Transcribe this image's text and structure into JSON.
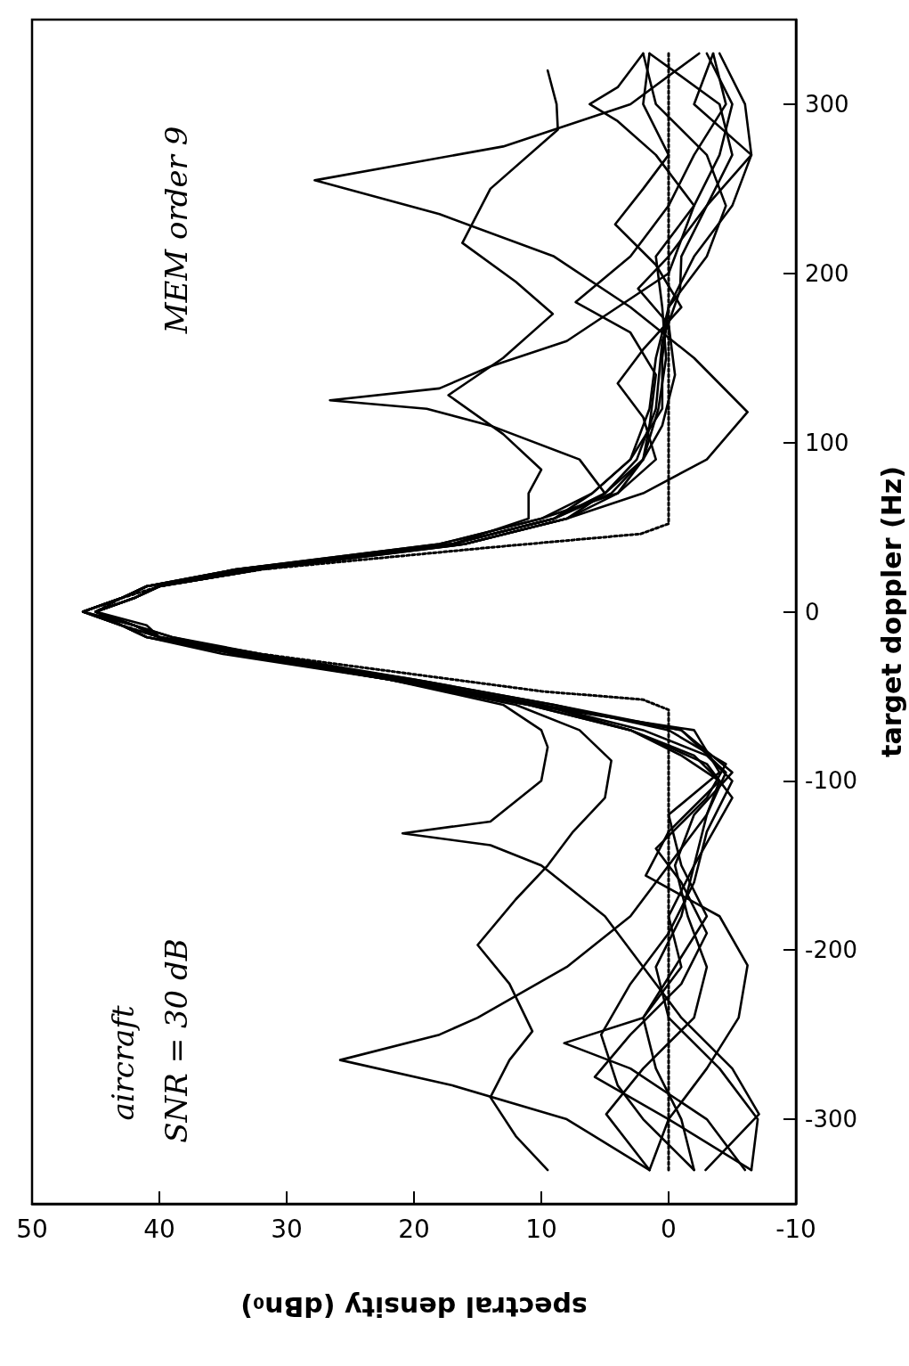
{
  "chart_data": {
    "type": "line",
    "xlabel": "spectral density (dBn₀)",
    "ylabel": "target doppler (Hz)",
    "xlim": [
      50,
      -10
    ],
    "ylim": [
      -350,
      350
    ],
    "xticks": [
      50,
      40,
      30,
      20,
      10,
      0,
      -10
    ],
    "yticks": [
      -300,
      -200,
      -100,
      0,
      100,
      200,
      300
    ],
    "grid": false,
    "marker": "none",
    "line_style": "solid",
    "annotations": [
      "aircraft",
      "SNR = 30 dB",
      "MEM order 9"
    ],
    "series": [
      {
        "color": "#000000",
        "values": [
          -330,
          -310,
          -287,
          -265,
          -248,
          -220,
          -197,
          -170,
          -150,
          -130,
          -110,
          -88,
          -70,
          -55,
          -40,
          -25,
          -15,
          -8,
          0,
          8,
          15,
          25,
          40,
          55,
          70,
          84,
          105,
          128,
          150,
          176,
          195,
          218,
          250,
          285,
          300,
          320
        ],
        "x": [
          9.5,
          12,
          14,
          12.5,
          10.7,
          12.5,
          15,
          12,
          9.5,
          7.5,
          5,
          4.5,
          7,
          12,
          22,
          34,
          40,
          42,
          46,
          43,
          41,
          33,
          17,
          11,
          11,
          10,
          13,
          17.3,
          13,
          9.1,
          12,
          16.2,
          14,
          8.7,
          8.8,
          9.5
        ]
      },
      {
        "color": "#000000",
        "values": [
          -330,
          -300,
          -280,
          -265,
          -250,
          -240,
          -210,
          -180,
          -150,
          -120,
          -100,
          -85,
          -70,
          -55,
          -40,
          -25,
          -15,
          -8,
          0,
          8,
          15,
          25,
          40,
          55,
          70,
          90,
          118,
          150,
          180,
          210,
          235,
          255,
          275,
          300,
          330
        ],
        "x": [
          1.5,
          8,
          17,
          25.8,
          18,
          15,
          8,
          3,
          0,
          -3,
          -4,
          -1,
          3,
          11,
          21,
          33,
          40,
          41,
          45,
          42,
          40,
          32,
          16,
          8,
          2,
          -3,
          -6.2,
          -2,
          3,
          9,
          18,
          27.8,
          13,
          3,
          -2.4
        ]
      },
      {
        "color": "#000000",
        "values": [
          -330,
          -297,
          -270,
          -240,
          -210,
          -180,
          -150,
          -138,
          -131,
          -124,
          -100,
          -80,
          -70,
          -55,
          -40,
          -25,
          -15,
          -8,
          0,
          8,
          15,
          25,
          40,
          55,
          70,
          90,
          110,
          120,
          125,
          132,
          145,
          160,
          200,
          240,
          270,
          290,
          300,
          310,
          330
        ],
        "x": [
          -2.9,
          -7.1,
          -5,
          -1,
          2,
          5,
          10,
          14,
          20.9,
          14,
          10,
          9.5,
          10,
          13,
          22,
          34,
          41,
          43,
          46,
          43,
          41,
          34,
          17,
          9,
          5,
          7,
          14,
          19,
          26.6,
          18,
          14,
          8,
          0,
          -2,
          1,
          4,
          6.2,
          4,
          2
        ]
      },
      {
        "color": "#000000",
        "values": [
          -330,
          -300,
          -270,
          -240,
          -209,
          -180,
          -156,
          -130,
          -100,
          -85,
          -70,
          -55,
          -40,
          -25,
          -15,
          -8,
          0,
          8,
          15,
          25,
          40,
          55,
          70,
          90,
          110,
          140,
          165,
          183,
          210,
          240,
          270,
          300,
          330
        ],
        "x": [
          1.5,
          0,
          -3,
          -5.5,
          -6.2,
          -4,
          1.8,
          0,
          -4,
          -2,
          3,
          10,
          21,
          33,
          39,
          42,
          45,
          42,
          40,
          33,
          16,
          8,
          4,
          2,
          1.5,
          1,
          3,
          7.3,
          3,
          0,
          -2,
          -4.5,
          -3.5
        ]
      },
      {
        "color": "#000000",
        "values": [
          -330,
          -300,
          -270,
          -255,
          -240,
          -210,
          -180,
          -150,
          -110,
          -90,
          -70,
          -55,
          -40,
          -25,
          -15,
          -8,
          0,
          8,
          15,
          25,
          40,
          55,
          70,
          90,
          115,
          135,
          155,
          180,
          205,
          229,
          250,
          270,
          300,
          330
        ],
        "x": [
          -6,
          -3,
          3,
          8.2,
          2,
          -1,
          0,
          -2,
          -5,
          -3,
          3,
          11,
          22,
          35,
          41,
          43,
          46,
          43,
          41,
          34,
          18,
          10,
          4,
          1,
          2,
          4,
          2,
          -1,
          1,
          4.2,
          2,
          0,
          2,
          1.5
        ]
      },
      {
        "color": "#000000",
        "values": [
          -330,
          -300,
          -280,
          -250,
          -220,
          -190,
          -160,
          -130,
          -100,
          -85,
          -70,
          -55,
          -40,
          -25,
          -15,
          -8,
          0,
          8,
          15,
          25,
          40,
          55,
          70,
          90,
          110,
          140,
          170,
          191,
          210,
          240,
          270,
          300,
          330
        ],
        "x": [
          -2,
          2,
          4,
          5.3,
          3,
          0,
          -2,
          -3,
          -5,
          -3,
          2,
          10,
          21,
          33,
          40,
          42,
          45,
          42,
          40,
          33,
          17,
          9,
          5,
          2,
          0.5,
          -0.5,
          0,
          2.4,
          0,
          -3,
          -6.5,
          -6,
          -4
        ]
      },
      {
        "color": "#000000",
        "values": [
          -330,
          -300,
          -275,
          -250,
          -220,
          -190,
          -160,
          -140,
          -110,
          -90,
          -70,
          -55,
          -40,
          -25,
          -15,
          -8,
          0,
          8,
          15,
          25,
          40,
          55,
          70,
          90,
          120,
          160,
          190,
          210,
          240,
          270,
          300,
          330
        ],
        "x": [
          -6.5,
          0,
          5.8,
          3,
          -1,
          -3,
          -1,
          1,
          -3,
          -4.5,
          0,
          9,
          20,
          32,
          39,
          42,
          45,
          42,
          40,
          32,
          16,
          8,
          5,
          2.5,
          1,
          0.5,
          -0.9,
          -1,
          -3,
          -5,
          -4,
          1.5
        ]
      },
      {
        "color": "#000000",
        "values": [
          -330,
          -297,
          -270,
          -240,
          -210,
          -180,
          -150,
          -120,
          -95,
          -70,
          -55,
          -40,
          -25,
          -15,
          -8,
          0,
          8,
          15,
          25,
          40,
          55,
          70,
          90,
          120,
          150,
          180,
          210,
          240,
          270,
          300,
          330
        ],
        "x": [
          1.5,
          4.9,
          2,
          -2,
          -3,
          -1.5,
          -0.5,
          -2,
          -5,
          -1,
          9,
          20,
          33,
          40,
          42,
          46,
          43,
          41,
          33,
          17,
          9,
          6,
          3,
          1.5,
          1,
          0,
          -2,
          -5,
          -6.5,
          -2,
          -3.5
        ]
      },
      {
        "color": "#000000",
        "values": [
          -330,
          -300,
          -270,
          -240,
          -210,
          -180,
          -150,
          -120,
          -95,
          -70,
          -55,
          -40,
          -25,
          -15,
          -8,
          0,
          8,
          15,
          25,
          40,
          55,
          70,
          90,
          120,
          150,
          180,
          210,
          240,
          270,
          300,
          330
        ],
        "x": [
          -6.5,
          -7,
          -4,
          0,
          1,
          -1,
          -2,
          -3,
          -4.5,
          -1,
          10,
          21,
          34,
          40,
          43,
          45,
          42,
          40,
          33,
          17,
          9,
          4.5,
          2,
          0.8,
          0.2,
          0.5,
          1,
          -2,
          -4,
          -5,
          -3
        ]
      },
      {
        "color": "#000000",
        "values": [
          -330,
          -300,
          -270,
          -240,
          -210,
          -180,
          -150,
          -120,
          -95,
          -70,
          -55,
          -40,
          -25,
          -15,
          -8,
          0,
          8,
          15,
          25,
          40,
          55,
          70,
          90,
          120,
          150,
          180,
          210,
          240,
          270,
          300,
          330
        ],
        "x": [
          -2,
          -1,
          1,
          2,
          -0.5,
          -3,
          -1,
          0,
          -4,
          -2,
          11,
          22,
          34,
          41,
          43,
          46,
          43,
          41,
          34,
          18,
          10,
          6,
          3,
          0.5,
          0.5,
          0,
          -3,
          -4.5,
          -3,
          1,
          2
        ]
      },
      {
        "color": "#000000",
        "line_style": "dotted",
        "values": [
          -330,
          -58,
          -52,
          -47,
          -38,
          -25,
          -15,
          -8,
          0,
          8,
          15,
          25,
          38,
          46,
          52,
          330
        ],
        "x": [
          0,
          0,
          2,
          10,
          19,
          32,
          40,
          43,
          45,
          43,
          40,
          32,
          14,
          2.2,
          0,
          0
        ]
      }
    ]
  }
}
